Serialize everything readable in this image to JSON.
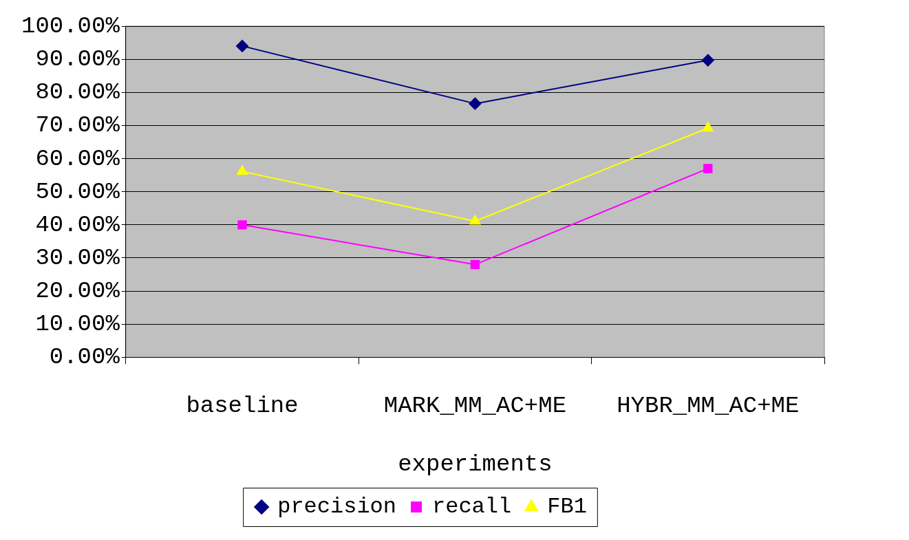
{
  "chart_data": {
    "type": "line",
    "xlabel": "experiments",
    "categories": [
      "baseline",
      "MARK_MM_AC+ME",
      "HYBR_MM_AC+ME"
    ],
    "series": [
      {
        "name": "precision",
        "color": "#000080",
        "marker": "diamond",
        "values": [
          94.0,
          76.6,
          89.7
        ]
      },
      {
        "name": "recall",
        "color": "#ff00ff",
        "marker": "square",
        "values": [
          40.0,
          28.0,
          57.0
        ]
      },
      {
        "name": "FB1",
        "color": "#ffff00",
        "marker": "triangle",
        "values": [
          56.1,
          41.1,
          69.2
        ]
      }
    ],
    "ylim": [
      0,
      100
    ],
    "yticks": [
      {
        "value": 0,
        "label": "0.00%"
      },
      {
        "value": 10,
        "label": "10.00%"
      },
      {
        "value": 20,
        "label": "20.00%"
      },
      {
        "value": 30,
        "label": "30.00%"
      },
      {
        "value": 40,
        "label": "40.00%"
      },
      {
        "value": 50,
        "label": "50.00%"
      },
      {
        "value": 60,
        "label": "60.00%"
      },
      {
        "value": 70,
        "label": "70.00%"
      },
      {
        "value": 80,
        "label": "80.00%"
      },
      {
        "value": 90,
        "label": "90.00%"
      },
      {
        "value": 100,
        "label": "100.00%"
      }
    ],
    "grid": "y",
    "legend": "bottom",
    "line_style": "solid"
  }
}
